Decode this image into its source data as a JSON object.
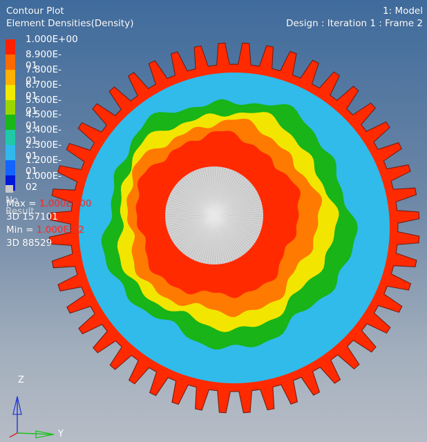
{
  "header": {
    "plot_type": "Contour Plot",
    "result": "Element Densities(Density)",
    "model": "1: Model",
    "frame": "Design : Iteration 1 : Frame 2"
  },
  "legend": {
    "labels": [
      "1.000E+00",
      "8.900E-01",
      "7.800E-01",
      "6.700E-01",
      "5.600E-01",
      "4.500E-01",
      "3.400E-01",
      "2.300E-01",
      "1.200E-01"
    ],
    "bottom_label": "1.000E-02",
    "colors": [
      "#ff2000",
      "#ff6a00",
      "#ffb000",
      "#f0ea00",
      "#9ad600",
      "#18b818",
      "#20c8a8",
      "#30b8ec",
      "#1464ff",
      "#0018d8"
    ],
    "no_result": "No Result"
  },
  "stats": {
    "max_prefix": "Max =",
    "max_value": "1.000E+00",
    "max_element": "3D 157101",
    "min_prefix": "Min =",
    "min_value": "1.000E-02",
    "min_element": "3D 88529"
  },
  "triad": {
    "z": "Z",
    "y": "Y"
  },
  "gear": {
    "teeth": 48,
    "ring_colors": [
      "#ff2a00",
      "#30bbea",
      "#18b418",
      "#f2e600",
      "#ff7a00",
      "#c8c8c8"
    ]
  }
}
